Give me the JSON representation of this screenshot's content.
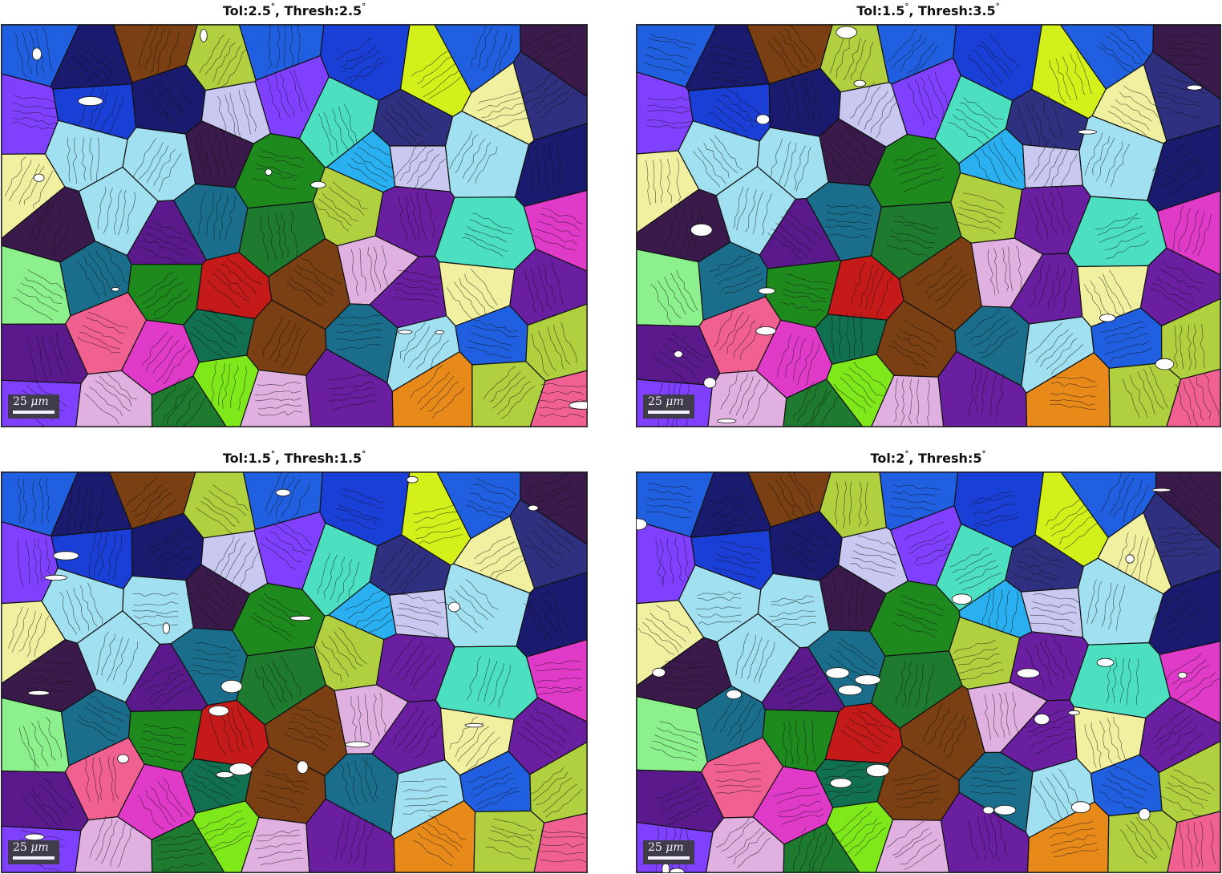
{
  "panels": [
    {
      "tol_label": "Tol:2.5",
      "thresh_label": ", Thresh:2.5",
      "degree_symbol": "°",
      "scale_value": "25",
      "scale_unit": "μm",
      "seed": 11
    },
    {
      "tol_label": "Tol:1.5",
      "thresh_label": ", Thresh:3.5",
      "degree_symbol": "°",
      "scale_value": "25",
      "scale_unit": "μm",
      "seed": 23
    },
    {
      "tol_label": "Tol:1.5",
      "thresh_label": ", Thresh:1.5",
      "degree_symbol": "°",
      "scale_value": "25",
      "scale_unit": "μm",
      "seed": 37
    },
    {
      "tol_label": "Tol:2",
      "thresh_label": ", Thresh:5",
      "degree_symbol": "°",
      "scale_value": "25",
      "scale_unit": "μm",
      "seed": 41
    }
  ],
  "grain_palette": [
    "#1e7a2e",
    "#6a1ea0",
    "#1a3fd6",
    "#7fe81a",
    "#2a5c55",
    "#e88a1a",
    "#c41a1a",
    "#7a3f12",
    "#1a1a6e",
    "#d3f01a",
    "#4de0c0",
    "#9b5ae0",
    "#e03ac8",
    "#f0f0a0",
    "#2ab0f0",
    "#8cf08c",
    "#3a1a4a",
    "#1a6e8c",
    "#a0e0f0",
    "#c8c8f0",
    "#1e8a1e",
    "#5a1a8c",
    "#2060e0",
    "#b0d040",
    "#f06090",
    "#107050",
    "#8040ff",
    "#40a0a0",
    "#e0b0e0",
    "#303080"
  ],
  "void_color": "#ffffff"
}
